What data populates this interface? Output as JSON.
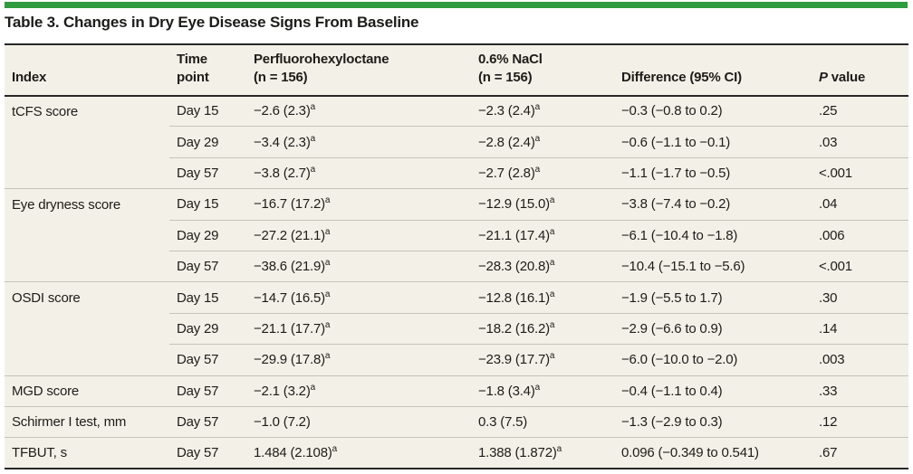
{
  "title": "Table 3. Changes in Dry Eye Disease Signs From Baseline",
  "colors": {
    "accent_bar_green": "#2e9b3e",
    "table_background": "#f3f1e7",
    "dark_rule": "#272727",
    "light_rule": "#c6c4ba",
    "text": "#1d1c1a"
  },
  "table": {
    "columns": [
      {
        "label": "Index"
      },
      {
        "line1": "Time",
        "line2": "point"
      },
      {
        "line1": "Perfluorohexyloctane",
        "line2": "(n = 156)"
      },
      {
        "line1": "0.6% NaCl",
        "line2": "(n = 156)"
      },
      {
        "label": "Difference (95% CI)"
      },
      {
        "italic": "P",
        "rest": "value"
      }
    ],
    "footnote_marker": "a",
    "rows": [
      {
        "group_start": true,
        "index": "tCFS score",
        "time": "Day 15",
        "pfho": "−2.6 (2.3)",
        "pfho_sup": "a",
        "nacl": "−2.3 (2.4)",
        "nacl_sup": "a",
        "diff": "−0.3 (−0.8 to 0.2)",
        "p": ".25"
      },
      {
        "group_start": false,
        "index": "",
        "time": "Day 29",
        "pfho": "−3.4 (2.3)",
        "pfho_sup": "a",
        "nacl": "−2.8 (2.4)",
        "nacl_sup": "a",
        "diff": "−0.6 (−1.1 to −0.1)",
        "p": ".03"
      },
      {
        "group_start": false,
        "index": "",
        "time": "Day 57",
        "pfho": "−3.8 (2.7)",
        "pfho_sup": "a",
        "nacl": "−2.7 (2.8)",
        "nacl_sup": "a",
        "diff": "−1.1 (−1.7 to −0.5)",
        "p": "<.001"
      },
      {
        "group_start": true,
        "index": "Eye dryness score",
        "time": "Day 15",
        "pfho": "−16.7 (17.2)",
        "pfho_sup": "a",
        "nacl": "−12.9 (15.0)",
        "nacl_sup": "a",
        "diff": "−3.8 (−7.4 to −0.2)",
        "p": ".04"
      },
      {
        "group_start": false,
        "index": "",
        "time": "Day 29",
        "pfho": "−27.2 (21.1)",
        "pfho_sup": "a",
        "nacl": "−21.1 (17.4)",
        "nacl_sup": "a",
        "diff": "−6.1 (−10.4 to −1.8)",
        "p": ".006"
      },
      {
        "group_start": false,
        "index": "",
        "time": "Day 57",
        "pfho": "−38.6 (21.9)",
        "pfho_sup": "a",
        "nacl": "−28.3 (20.8)",
        "nacl_sup": "a",
        "diff": "−10.4 (−15.1 to −5.6)",
        "p": "<.001"
      },
      {
        "group_start": true,
        "index": "OSDI score",
        "time": "Day 15",
        "pfho": "−14.7 (16.5)",
        "pfho_sup": "a",
        "nacl": "−12.8 (16.1)",
        "nacl_sup": "a",
        "diff": "−1.9 (−5.5 to 1.7)",
        "p": ".30"
      },
      {
        "group_start": false,
        "index": "",
        "time": "Day 29",
        "pfho": "−21.1 (17.7)",
        "pfho_sup": "a",
        "nacl": "−18.2 (16.2)",
        "nacl_sup": "a",
        "diff": "−2.9 (−6.6 to 0.9)",
        "p": ".14"
      },
      {
        "group_start": false,
        "index": "",
        "time": "Day 57",
        "pfho": "−29.9 (17.8)",
        "pfho_sup": "a",
        "nacl": "−23.9 (17.7)",
        "nacl_sup": "a",
        "diff": "−6.0 (−10.0 to −2.0)",
        "p": ".003"
      },
      {
        "group_start": true,
        "index": "MGD score",
        "time": "Day 57",
        "pfho": "−2.1 (3.2)",
        "pfho_sup": "a",
        "nacl": "−1.8 (3.4)",
        "nacl_sup": "a",
        "diff": "−0.4 (−1.1 to 0.4)",
        "p": ".33"
      },
      {
        "group_start": true,
        "index": "Schirmer I test, mm",
        "time": "Day 57",
        "pfho": "−1.0 (7.2)",
        "pfho_sup": "",
        "nacl": "0.3 (7.5)",
        "nacl_sup": "",
        "diff": "−1.3 (−2.9 to 0.3)",
        "p": ".12"
      },
      {
        "group_start": true,
        "index": "TFBUT, s",
        "time": "Day 57",
        "pfho": "1.484 (2.108)",
        "pfho_sup": "a",
        "nacl": "1.388 (1.872)",
        "nacl_sup": "a",
        "diff": "0.096 (−0.349 to 0.541)",
        "p": ".67"
      }
    ]
  }
}
